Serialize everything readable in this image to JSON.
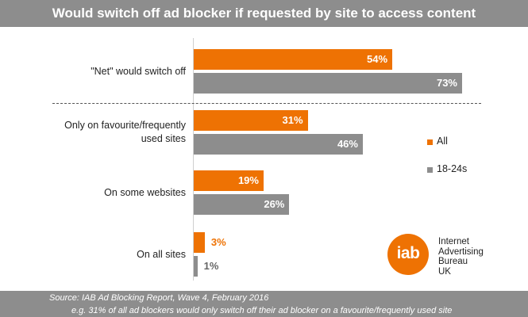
{
  "footer": {
    "source": "Source: IAB Ad Blocking Report, Wave 4, February 2016",
    "note": "e.g. 31% of all ad blockers would only switch off their ad blocker on a favourite/frequently used site"
  },
  "logo": {
    "mark": "iab",
    "lines": [
      "Internet",
      "Advertising",
      "Bureau",
      "UK"
    ]
  },
  "chart_data": {
    "type": "bar",
    "orientation": "horizontal",
    "title": "Would switch off ad blocker if requested by site to access content",
    "categories": [
      "\"Net\" would switch off",
      "Only on favourite/frequently used sites",
      "On some websites",
      "On all sites"
    ],
    "category_lines": [
      [
        "\"Net\" would switch off"
      ],
      [
        "Only on favourite/frequently",
        "used sites"
      ],
      [
        "On some websites"
      ],
      [
        "On all sites"
      ]
    ],
    "series": [
      {
        "name": "All",
        "values": [
          54,
          31,
          19,
          3
        ],
        "labels": [
          "54%",
          "31%",
          "19%",
          "3%"
        ],
        "color": "#ee7203"
      },
      {
        "name": "18-24s",
        "values": [
          73,
          46,
          26,
          1
        ],
        "labels": [
          "73%",
          "46%",
          "26%",
          "1%"
        ],
        "color": "#8d8d8d"
      }
    ],
    "xlim": [
      0,
      100
    ],
    "grid": false,
    "legend": "right",
    "colors": {
      "all_label_small": "#ee7203",
      "label_on_bar": "#ffffff",
      "label_outside_gray": "#666666"
    }
  }
}
